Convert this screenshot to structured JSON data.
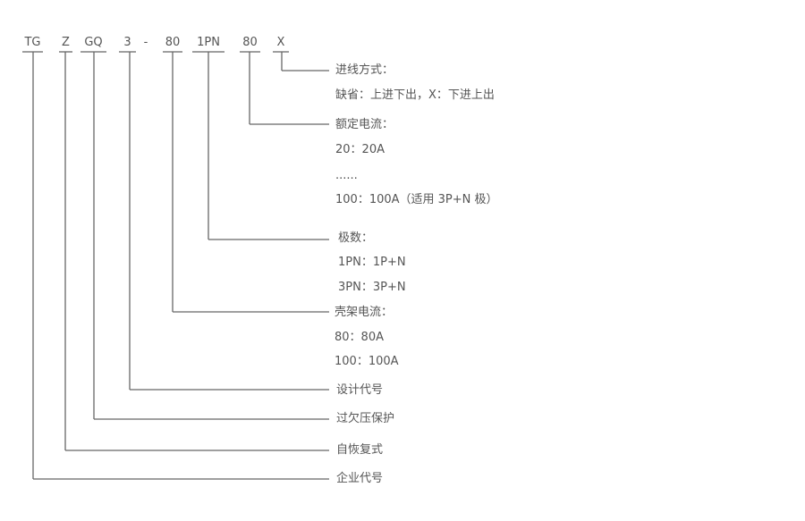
{
  "codes": [
    "TG",
    "Z",
    "GQ",
    "3",
    "-",
    "80",
    "1PN",
    "80",
    "X"
  ],
  "descriptions": {
    "inlet_method": {
      "title": "进线方式：",
      "lines": [
        "缺省：上进下出，X：下进上出"
      ]
    },
    "rated_current": {
      "title": "额定电流：",
      "lines": [
        "20：20A",
        "......",
        "100：100A（适用 3P+N 极）"
      ]
    },
    "poles": {
      "title": "极数：",
      "lines": [
        "1PN：1P+N",
        "3PN：3P+N"
      ]
    },
    "frame_current": {
      "title": "壳架电流：",
      "lines": [
        "80：80A",
        "100：100A"
      ]
    },
    "design_code": {
      "title": "设计代号"
    },
    "over_under_voltage": {
      "title": "过欠压保护"
    },
    "auto_reset": {
      "title": "自恢复式"
    },
    "company_code": {
      "title": "企业代号"
    }
  }
}
